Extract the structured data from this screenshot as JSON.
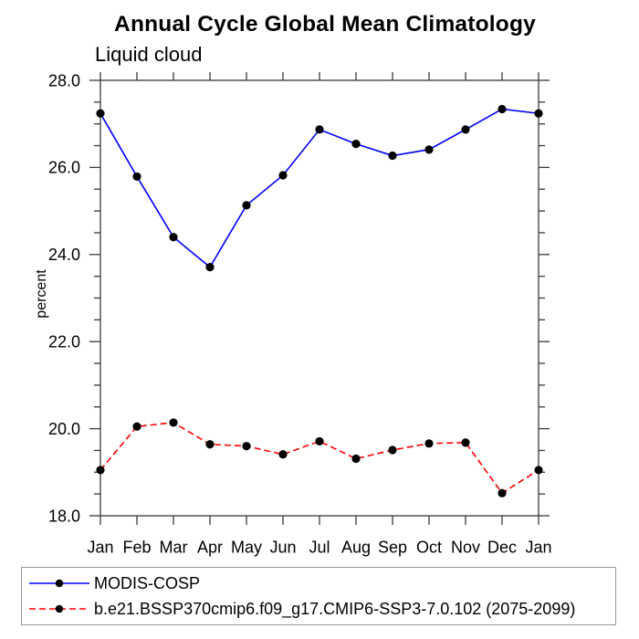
{
  "chart_data": {
    "type": "line",
    "title": "Annual Cycle Global Mean Climatology",
    "subtitle": "Liquid cloud",
    "ylabel": "percent",
    "categories": [
      "Jan",
      "Feb",
      "Mar",
      "Apr",
      "May",
      "Jun",
      "Jul",
      "Aug",
      "Sep",
      "Oct",
      "Nov",
      "Dec",
      "Jan"
    ],
    "series": [
      {
        "name": "MODIS-COSP",
        "color": "#0000ff",
        "style": "solid",
        "marker": "circle",
        "marker_color": "#000000",
        "values": [
          27.24,
          25.79,
          24.4,
          23.71,
          25.13,
          25.82,
          26.87,
          26.54,
          26.27,
          26.41,
          26.87,
          27.34,
          27.24
        ]
      },
      {
        "name": "b.e21.BSSP370cmip6.f09_g17.CMIP6-SSP3-7.0.102 (2075-2099)",
        "color": "#ff0000",
        "style": "dashed",
        "marker": "circle",
        "marker_color": "#000000",
        "values": [
          19.05,
          20.05,
          20.14,
          19.64,
          19.6,
          19.41,
          19.71,
          19.31,
          19.51,
          19.66,
          19.68,
          18.52,
          19.05
        ]
      }
    ],
    "ylim": [
      18,
      28
    ],
    "yticks_major": [
      18,
      20,
      22,
      24,
      26,
      28
    ],
    "ytick_labels": [
      "18.0",
      "20.0",
      "22.0",
      "24.0",
      "26.0",
      "28.0"
    ],
    "ytick_minor_step": 0.5,
    "grid": false,
    "legend_position": "bottom",
    "axis_color": "#3a3a3a",
    "legend_border_color": "#999999"
  }
}
